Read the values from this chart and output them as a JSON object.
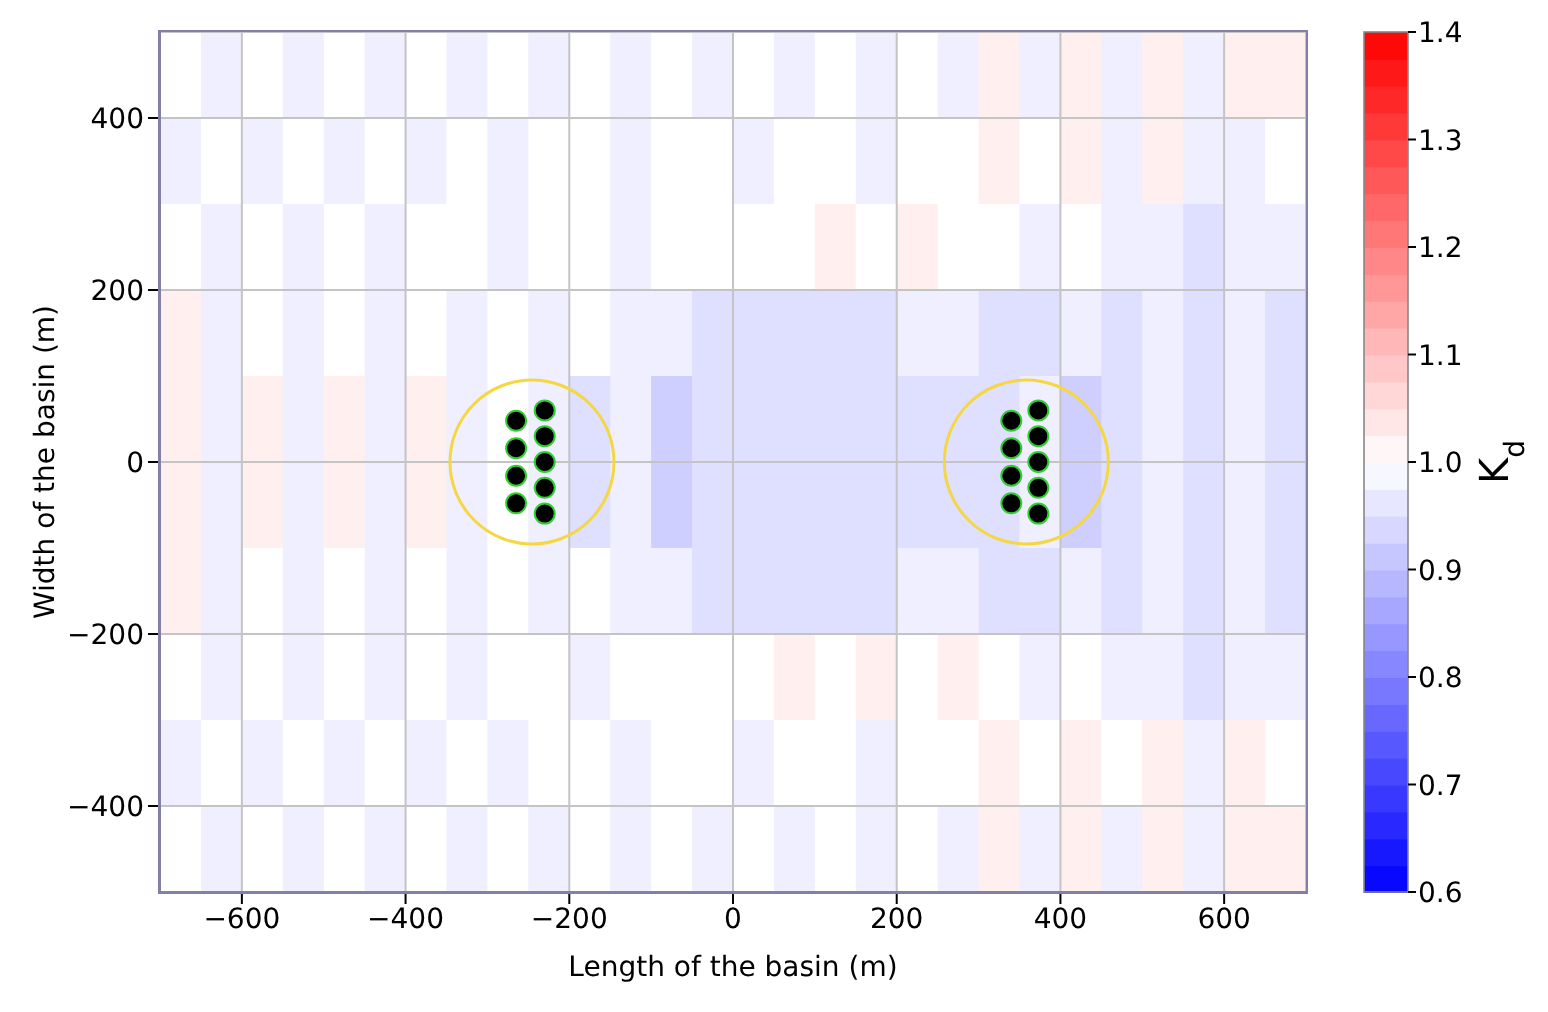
{
  "chart_data": {
    "type": "heatmap",
    "xlabel": "Length of the basin (m)",
    "ylabel": "Width of the basin (m)",
    "clabel": "K$_{d}$",
    "xlim": [
      -700,
      700
    ],
    "ylim": [
      -500,
      500
    ],
    "xticks": [
      -600,
      -400,
      -200,
      0,
      200,
      400,
      600
    ],
    "yticks": [
      -400,
      -200,
      0,
      200,
      400
    ],
    "grid": true,
    "marker": "circle",
    "clim": [
      0.6,
      1.4
    ],
    "cticks": [
      0.6,
      0.7,
      0.8,
      0.9,
      {
        "value": 1.0,
        "label": "1.0"
      },
      1.1,
      1.2,
      1.3,
      1.4
    ],
    "cells": [
      [
        1,
        0.975,
        1,
        0.975,
        1,
        0.975,
        1,
        0.975,
        1,
        0.975,
        1,
        0.975,
        1,
        0.975,
        1,
        0.975,
        1,
        0.975,
        1,
        0.975,
        1.025,
        0.975,
        1.025,
        0.975,
        1.025,
        0.975,
        1.025,
        1.025
      ],
      [
        0.975,
        1,
        0.975,
        1,
        0.975,
        1,
        0.975,
        1,
        0.975,
        1,
        1,
        0.975,
        1,
        1,
        0.975,
        1,
        1,
        0.975,
        1,
        1,
        1.025,
        1,
        1.025,
        0.975,
        1.025,
        0.975,
        0.975,
        1
      ],
      [
        1,
        0.975,
        1,
        0.975,
        1,
        0.975,
        1,
        1,
        0.975,
        1,
        1,
        0.975,
        1,
        1,
        1,
        1,
        1.025,
        1,
        1.025,
        1,
        1,
        0.975,
        1,
        0.975,
        0.975,
        0.95,
        0.975,
        0.975
      ],
      [
        1.025,
        0.975,
        1,
        0.975,
        1,
        0.975,
        1,
        0.975,
        1,
        0.975,
        1,
        0.975,
        0.975,
        0.95,
        0.95,
        0.95,
        0.95,
        0.95,
        0.975,
        0.975,
        0.95,
        0.95,
        0.975,
        0.95,
        0.975,
        0.95,
        0.975,
        0.95
      ],
      [
        1.025,
        0.975,
        1.025,
        0.975,
        1.025,
        0.975,
        1.025,
        0.975,
        1,
        0.975,
        0.95,
        0.975,
        0.925,
        0.95,
        0.95,
        0.95,
        0.95,
        0.95,
        0.95,
        0.95,
        0.95,
        0.975,
        0.925,
        0.95,
        0.975,
        0.95,
        0.975,
        0.95
      ],
      [
        1.025,
        0.975,
        1.025,
        0.975,
        1.025,
        0.975,
        1.025,
        0.975,
        1,
        0.975,
        0.95,
        0.975,
        0.925,
        0.95,
        0.95,
        0.95,
        0.95,
        0.95,
        0.95,
        0.95,
        0.95,
        0.975,
        0.925,
        0.95,
        0.975,
        0.95,
        0.975,
        0.95
      ],
      [
        1.025,
        0.975,
        1,
        0.975,
        1,
        0.975,
        1,
        0.975,
        1,
        0.975,
        1,
        0.975,
        0.975,
        0.95,
        0.95,
        0.95,
        0.95,
        0.95,
        0.975,
        0.975,
        0.95,
        0.95,
        0.975,
        0.95,
        0.975,
        0.95,
        0.975,
        0.95
      ],
      [
        1,
        0.975,
        1,
        0.975,
        1,
        0.975,
        1,
        0.975,
        1,
        1,
        0.975,
        1,
        1,
        1,
        1,
        1.025,
        1,
        1.025,
        1,
        1.025,
        1,
        0.975,
        1,
        0.975,
        0.975,
        0.95,
        0.975,
        0.975
      ],
      [
        0.975,
        1,
        0.975,
        1,
        0.975,
        1,
        0.975,
        1,
        0.975,
        1,
        1,
        0.975,
        1,
        1,
        0.975,
        1,
        1,
        0.975,
        1,
        1,
        1.025,
        1,
        1.025,
        1,
        1.025,
        0.975,
        1.025,
        1
      ],
      [
        1,
        0.975,
        1,
        0.975,
        1,
        0.975,
        1,
        0.975,
        1,
        0.975,
        1,
        0.975,
        1,
        0.975,
        1,
        0.975,
        1,
        0.975,
        1,
        0.975,
        1.025,
        0.975,
        1.025,
        0.975,
        1.025,
        0.975,
        1.025,
        1.025
      ]
    ],
    "series": [
      {
        "type": "scatter",
        "color": "#000000",
        "x": [
          -265,
          -265,
          -265,
          -265,
          -230,
          -230,
          -230,
          -230,
          -230
        ],
        "values": [
          48,
          16,
          -16,
          -48,
          60,
          30,
          0,
          -30,
          -60
        ]
      },
      {
        "type": "scatter",
        "color": "#000000",
        "x": [
          340,
          340,
          340,
          340,
          373,
          373,
          373,
          373,
          373
        ],
        "values": [
          48,
          16,
          -16,
          -48,
          60,
          30,
          0,
          -30,
          -60
        ]
      }
    ]
  }
}
